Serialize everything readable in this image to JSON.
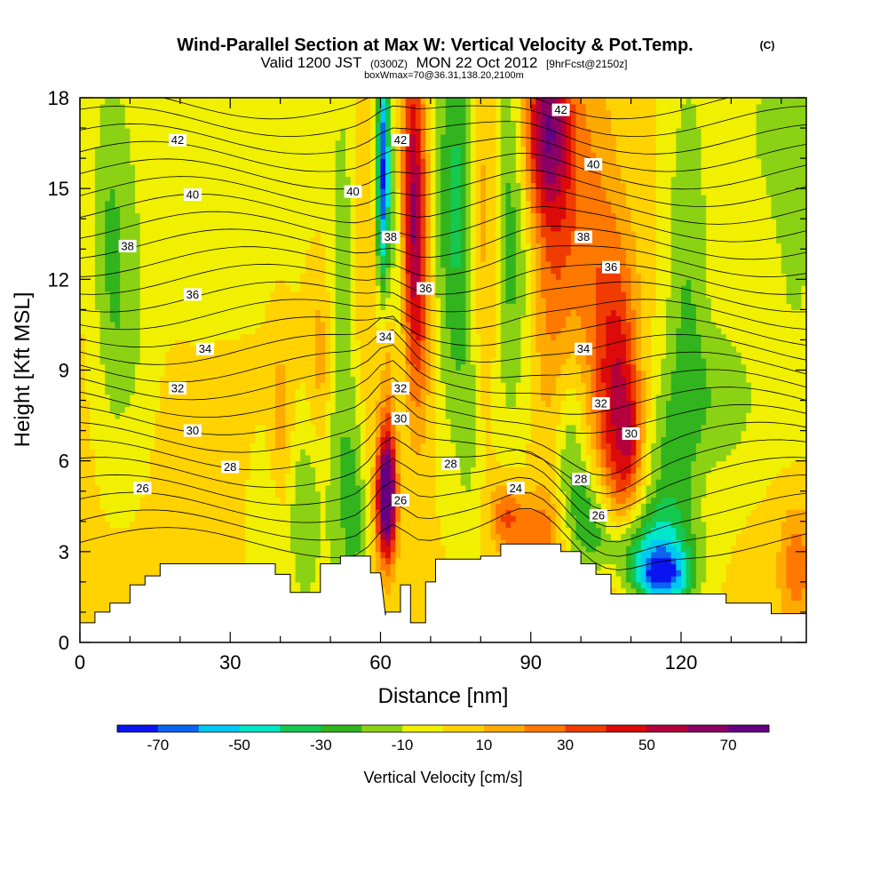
{
  "chart_data": {
    "type": "heatmap",
    "title": "Wind-Parallel Section at Max W: Vertical Velocity & Pot.Temp.",
    "title_mark": "(C)",
    "subtitle_main": "Valid 1200 JST",
    "subtitle_small": "(0300Z)",
    "subtitle_date": "MON 22 Oct 2012",
    "subtitle_fcst": "[9hrFcst@2150z]",
    "info": "boxWmax=70@36.31,138.20,2100m",
    "xlabel": "Distance [nm]",
    "ylabel": "Height [Kft MSL]",
    "xlim": [
      0,
      145
    ],
    "ylim": [
      0,
      18
    ],
    "xticks": [
      "0",
      "30",
      "60",
      "90",
      "120"
    ],
    "xtick_values": [
      0,
      30,
      60,
      90,
      120
    ],
    "yticks": [
      "0",
      "3",
      "6",
      "9",
      "12",
      "15",
      "18"
    ],
    "ytick_values": [
      0,
      3,
      6,
      9,
      12,
      15,
      18
    ],
    "colorbar": {
      "label": "Vertical Velocity [cm/s]",
      "bounds": [
        -80,
        80
      ],
      "tick_labels": [
        "-70",
        "-50",
        "-30",
        "-10",
        "10",
        "30",
        "50",
        "70"
      ],
      "tick_values": [
        -70,
        -50,
        -30,
        -10,
        10,
        30,
        50,
        70
      ],
      "colors": [
        "#0a14f0",
        "#0a64f0",
        "#00c8f5",
        "#00e6c8",
        "#14c850",
        "#32b41e",
        "#8cd214",
        "#f0f000",
        "#ffd200",
        "#ffaa00",
        "#ff7800",
        "#f03c00",
        "#dc0a0a",
        "#b4003c",
        "#8c0064",
        "#640082"
      ]
    },
    "terrain_kft": [
      [
        0,
        0.65
      ],
      [
        3,
        0.65
      ],
      [
        3,
        1.0
      ],
      [
        6,
        1.0
      ],
      [
        6,
        1.3
      ],
      [
        10,
        1.3
      ],
      [
        10,
        1.9
      ],
      [
        13,
        1.9
      ],
      [
        13,
        2.2
      ],
      [
        16,
        2.2
      ],
      [
        16,
        2.6
      ],
      [
        39,
        2.6
      ],
      [
        39,
        2.25
      ],
      [
        42,
        2.25
      ],
      [
        42,
        1.65
      ],
      [
        48,
        1.65
      ],
      [
        48,
        2.6
      ],
      [
        52,
        2.6
      ],
      [
        52,
        2.85
      ],
      [
        58,
        2.85
      ],
      [
        58,
        2.3
      ],
      [
        60,
        2.3
      ],
      [
        61,
        0.9
      ],
      [
        61,
        1.0
      ],
      [
        64,
        1.0
      ],
      [
        64,
        1.9
      ],
      [
        66,
        1.9
      ],
      [
        66,
        0.65
      ],
      [
        69,
        0.65
      ],
      [
        69,
        2.0
      ],
      [
        71,
        2.0
      ],
      [
        71,
        2.75
      ],
      [
        80,
        2.75
      ],
      [
        80,
        2.85
      ],
      [
        84,
        2.85
      ],
      [
        84,
        3.25
      ],
      [
        96,
        3.25
      ],
      [
        96,
        3.0
      ],
      [
        100,
        3.0
      ],
      [
        100,
        2.6
      ],
      [
        103,
        2.6
      ],
      [
        103,
        2.25
      ],
      [
        106,
        2.25
      ],
      [
        106,
        1.6
      ],
      [
        129,
        1.6
      ],
      [
        129,
        1.3
      ],
      [
        138,
        1.3
      ],
      [
        138,
        0.95
      ],
      [
        145,
        0.95
      ]
    ],
    "w_features": [
      {
        "x": 61.2,
        "y": 4.8,
        "sx": 1.3,
        "sy": 1.4,
        "w": 90
      },
      {
        "x": 61.5,
        "y": 8.5,
        "sx": 1.3,
        "sy": 3.0,
        "w": 20
      },
      {
        "x": 60.5,
        "y": 15.5,
        "sx": 0.9,
        "sy": 2.8,
        "w": -70
      },
      {
        "x": 63.0,
        "y": 13.0,
        "sx": 1.5,
        "sy": 3.5,
        "w": -20
      },
      {
        "x": 66.5,
        "y": 15.0,
        "sx": 1.8,
        "sy": 3.2,
        "w": 55
      },
      {
        "x": 67.5,
        "y": 10.5,
        "sx": 1.8,
        "sy": 2.8,
        "w": 25
      },
      {
        "x": 75.0,
        "y": 14.5,
        "sx": 3.0,
        "sy": 5.0,
        "w": -35
      },
      {
        "x": 78.0,
        "y": 6.5,
        "sx": 2.0,
        "sy": 3.0,
        "w": -10
      },
      {
        "x": 81.0,
        "y": 14.0,
        "sx": 2.0,
        "sy": 4.5,
        "w": 25
      },
      {
        "x": 86.0,
        "y": 14.0,
        "sx": 3.5,
        "sy": 5.0,
        "w": -30
      },
      {
        "x": 93.0,
        "y": 17.0,
        "sx": 3.5,
        "sy": 2.0,
        "w": 55
      },
      {
        "x": 95.0,
        "y": 13.0,
        "sx": 4.0,
        "sy": 4.5,
        "w": 28
      },
      {
        "x": 103.0,
        "y": 12.0,
        "sx": 3.0,
        "sy": 5.0,
        "w": 18
      },
      {
        "x": 107.5,
        "y": 8.0,
        "sx": 2.8,
        "sy": 3.5,
        "w": 45
      },
      {
        "x": 110.0,
        "y": 6.8,
        "sx": 1.6,
        "sy": 1.4,
        "w": 20
      },
      {
        "x": 98.0,
        "y": 6.5,
        "sx": 2.5,
        "sy": 2.5,
        "w": -25
      },
      {
        "x": 102.0,
        "y": 4.3,
        "sx": 3.0,
        "sy": 1.2,
        "w": -25
      },
      {
        "x": 112.0,
        "y": 3.2,
        "sx": 7.0,
        "sy": 1.0,
        "w": -35
      },
      {
        "x": 116.0,
        "y": 2.2,
        "sx": 4.0,
        "sy": 0.6,
        "w": -55
      },
      {
        "x": 117.0,
        "y": 5.0,
        "sx": 3.0,
        "sy": 2.5,
        "w": -20
      },
      {
        "x": 121.0,
        "y": 11.5,
        "sx": 3.0,
        "sy": 5.5,
        "w": -20
      },
      {
        "x": 128.0,
        "y": 8.0,
        "sx": 6.0,
        "sy": 2.0,
        "w": -18
      },
      {
        "x": 91.0,
        "y": 3.7,
        "sx": 4.5,
        "sy": 0.9,
        "w": 25
      },
      {
        "x": 85.0,
        "y": 4.3,
        "sx": 2.0,
        "sy": 0.8,
        "w": 25
      },
      {
        "x": 45.0,
        "y": 4.0,
        "sx": 2.5,
        "sy": 2.2,
        "w": -22
      },
      {
        "x": 37.0,
        "y": 4.0,
        "sx": 2.0,
        "sy": 1.8,
        "w": -12
      },
      {
        "x": 51.0,
        "y": 4.5,
        "sx": 1.5,
        "sy": 2.5,
        "w": -8
      },
      {
        "x": 55.0,
        "y": 4.0,
        "sx": 1.5,
        "sy": 2.5,
        "w": -22
      },
      {
        "x": 52.5,
        "y": 10.0,
        "sx": 2.0,
        "sy": 6.5,
        "w": -18
      },
      {
        "x": 48.0,
        "y": 9.5,
        "sx": 1.5,
        "sy": 2.0,
        "w": 14
      },
      {
        "x": 40.0,
        "y": 7.5,
        "sx": 1.5,
        "sy": 2.0,
        "w": 14
      },
      {
        "x": 6.0,
        "y": 13.0,
        "sx": 2.5,
        "sy": 4.0,
        "w": -18
      },
      {
        "x": 10.0,
        "y": 10.0,
        "sx": 3.0,
        "sy": 3.0,
        "w": -12
      },
      {
        "x": 143.0,
        "y": 2.5,
        "sx": 2.5,
        "sy": 1.5,
        "w": 25
      },
      {
        "x": 143.0,
        "y": 14.0,
        "sx": 3.0,
        "sy": 5.0,
        "w": -12
      },
      {
        "x": 25.0,
        "y": 16.5,
        "sx": 15.0,
        "sy": 3.5,
        "w": -12
      },
      {
        "x": 136.0,
        "y": 17.0,
        "sx": 8.0,
        "sy": 3.5,
        "w": -12
      },
      {
        "x": 56.5,
        "y": 13.5,
        "sx": 1.5,
        "sy": 4.0,
        "w": 10
      }
    ],
    "theta_labels": [
      {
        "x": 19.5,
        "y": 16.6,
        "v": "42"
      },
      {
        "x": 22.5,
        "y": 14.8,
        "v": "40"
      },
      {
        "x": 9.5,
        "y": 13.1,
        "v": "38"
      },
      {
        "x": 22.5,
        "y": 11.5,
        "v": "36"
      },
      {
        "x": 25.0,
        "y": 9.7,
        "v": "34"
      },
      {
        "x": 19.5,
        "y": 8.4,
        "v": "32"
      },
      {
        "x": 22.5,
        "y": 7.0,
        "v": "30"
      },
      {
        "x": 30.0,
        "y": 5.8,
        "v": "28"
      },
      {
        "x": 12.5,
        "y": 5.1,
        "v": "26"
      },
      {
        "x": 64.0,
        "y": 16.6,
        "v": "42"
      },
      {
        "x": 54.5,
        "y": 14.9,
        "v": "40"
      },
      {
        "x": 62.0,
        "y": 13.4,
        "v": "38"
      },
      {
        "x": 61.0,
        "y": 10.1,
        "v": "34"
      },
      {
        "x": 64.0,
        "y": 8.4,
        "v": "32"
      },
      {
        "x": 64.0,
        "y": 7.4,
        "v": "30"
      },
      {
        "x": 64.0,
        "y": 4.7,
        "v": "26"
      },
      {
        "x": 69.0,
        "y": 11.7,
        "v": "36"
      },
      {
        "x": 74.0,
        "y": 5.9,
        "v": "28"
      },
      {
        "x": 87.0,
        "y": 5.1,
        "v": "24"
      },
      {
        "x": 96.0,
        "y": 17.6,
        "v": "42"
      },
      {
        "x": 102.5,
        "y": 15.8,
        "v": "40"
      },
      {
        "x": 100.5,
        "y": 13.4,
        "v": "38"
      },
      {
        "x": 106.0,
        "y": 12.4,
        "v": "36"
      },
      {
        "x": 100.5,
        "y": 9.7,
        "v": "34"
      },
      {
        "x": 104.0,
        "y": 7.9,
        "v": "32"
      },
      {
        "x": 110.0,
        "y": 6.9,
        "v": "30"
      },
      {
        "x": 100.0,
        "y": 5.4,
        "v": "28"
      },
      {
        "x": 103.5,
        "y": 4.2,
        "v": "26"
      }
    ]
  }
}
